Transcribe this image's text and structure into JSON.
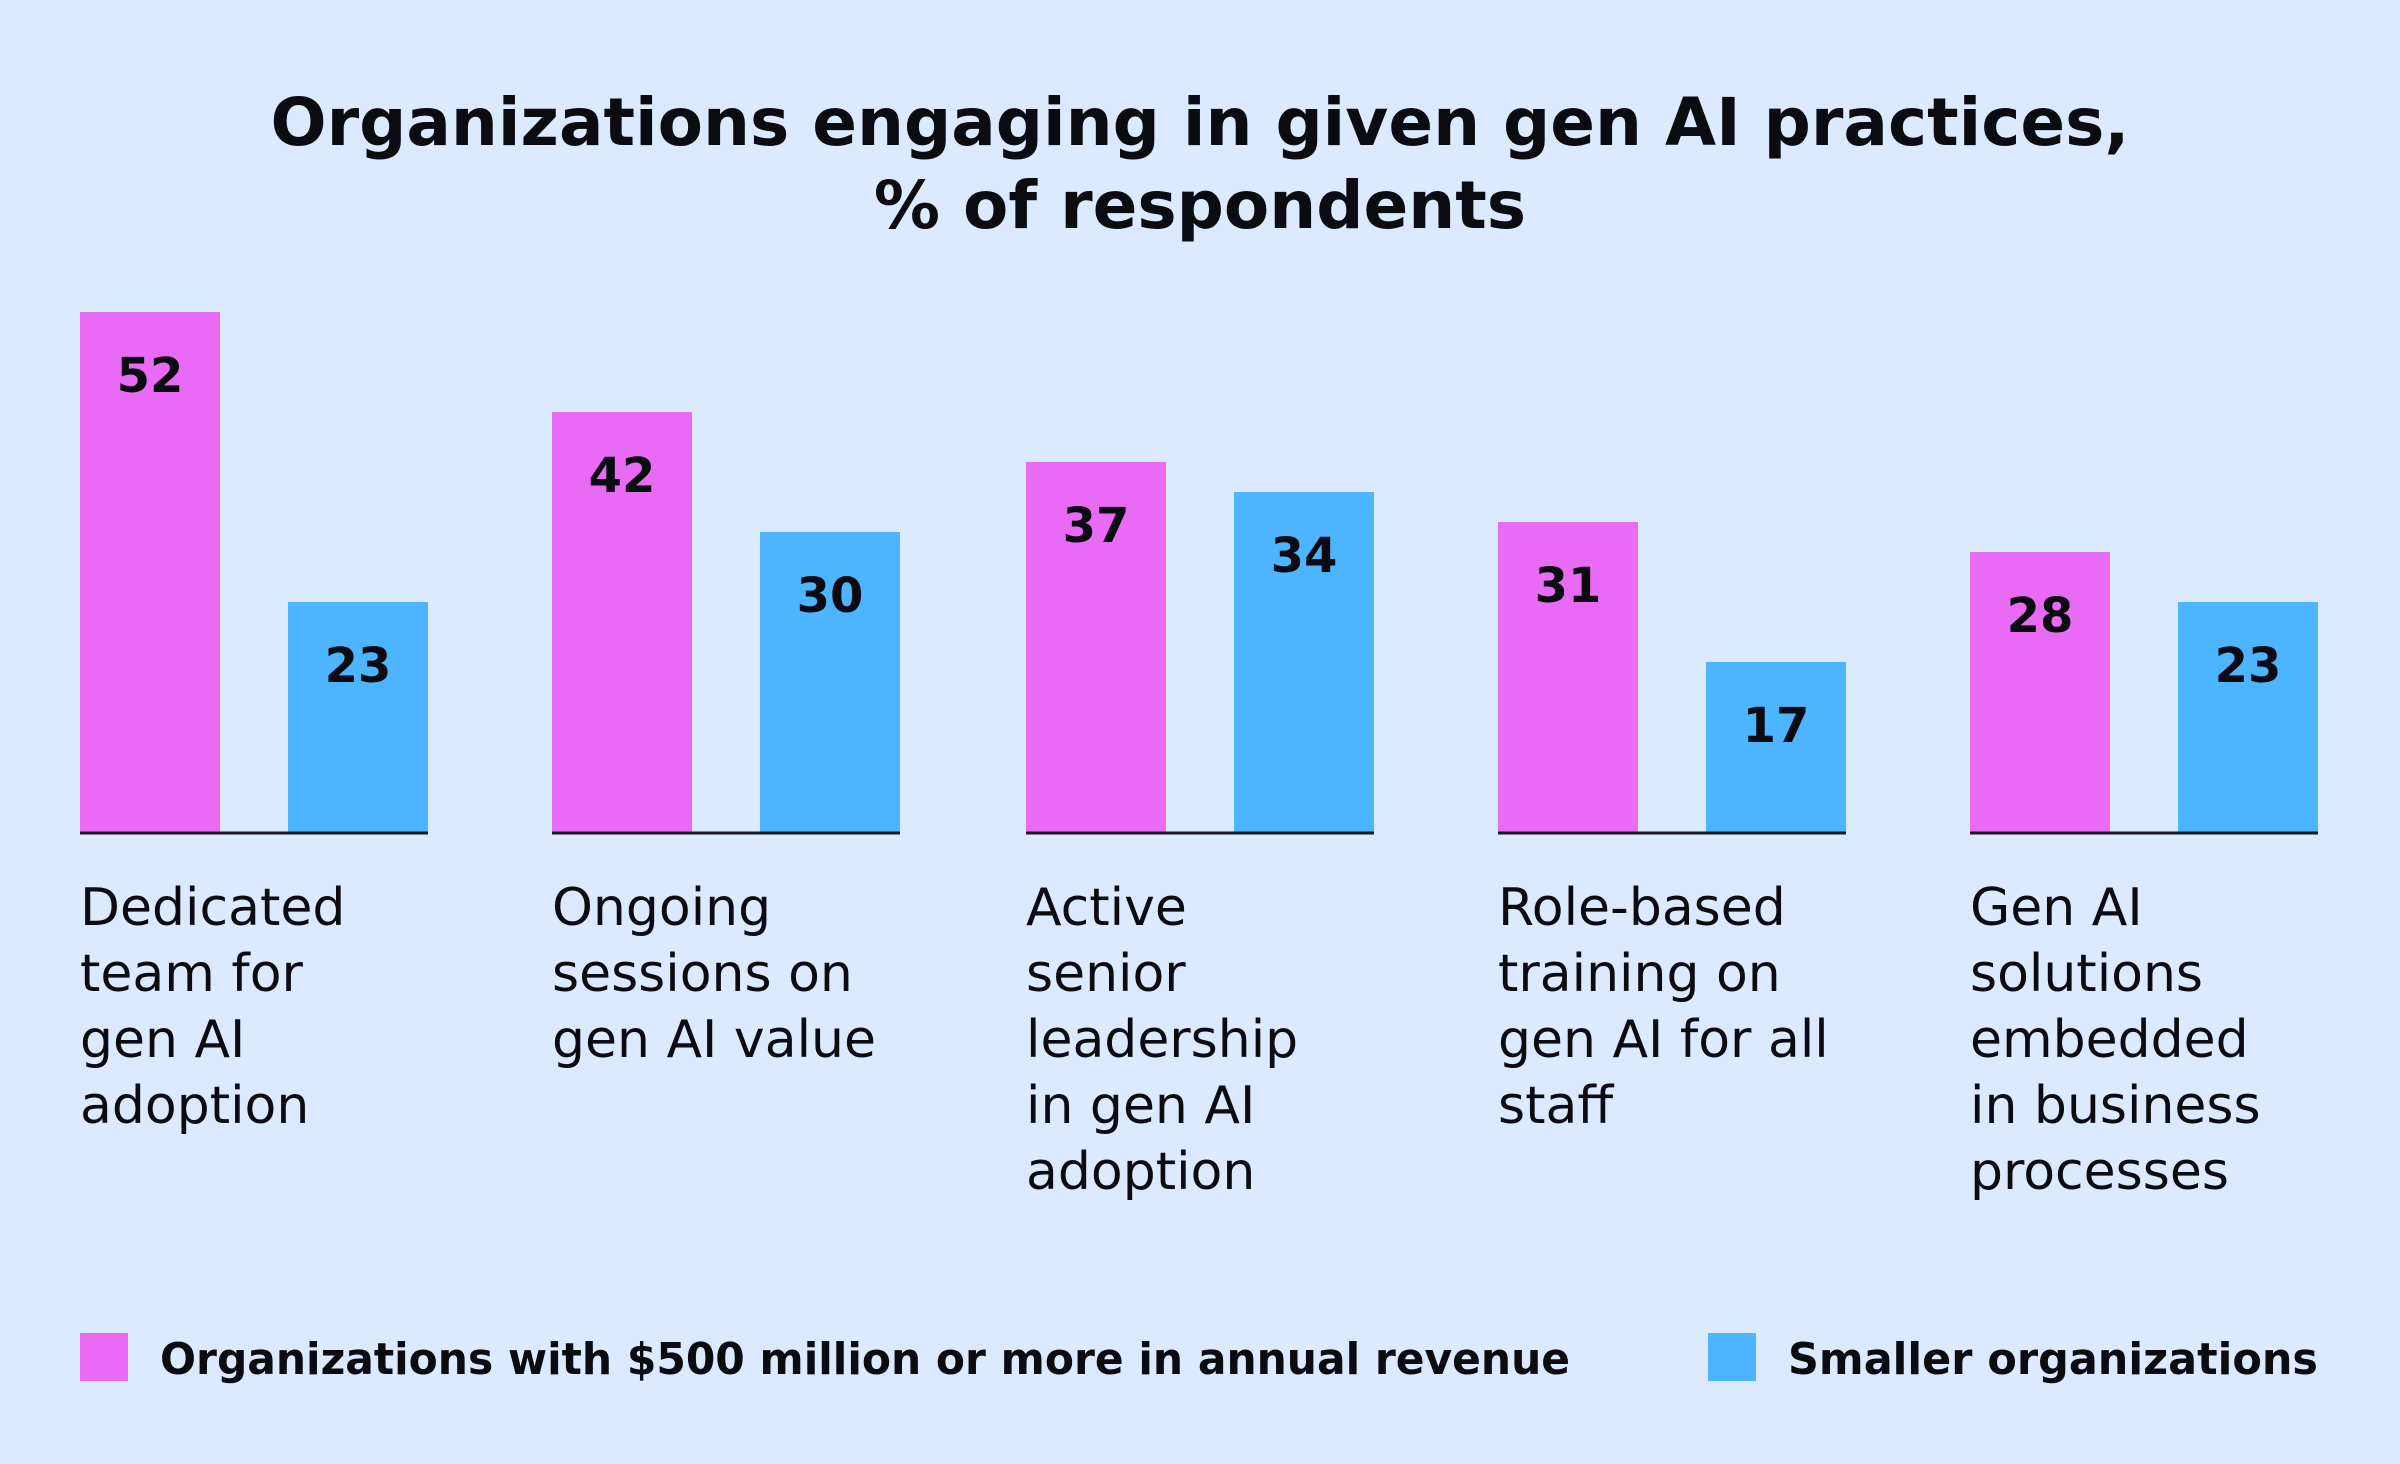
{
  "chart_data": {
    "type": "bar",
    "title_lines": [
      "Organizations engaging in given gen AI practices,",
      "% of respondents"
    ],
    "categories": [
      "Dedicated team for gen AI adoption",
      "Ongoing sessions on gen AI value",
      "Active senior leadership in gen AI adoption",
      "Role-based training on gen AI for all staff",
      "Gen AI solutions embedded in business processes"
    ],
    "category_lines": [
      [
        "Dedicated",
        "team for",
        "gen AI",
        "adoption"
      ],
      [
        "Ongoing",
        "sessions on",
        "gen AI value"
      ],
      [
        "Active",
        "senior",
        "leadership",
        "in gen AI",
        "adoption"
      ],
      [
        "Role-based",
        "training on",
        "gen AI for all",
        "staff"
      ],
      [
        "Gen AI",
        "solutions",
        "embedded",
        "in business",
        "processes"
      ]
    ],
    "series": [
      {
        "name": "Organizations with $500 million or more in annual revenue",
        "color": "#e96bf5",
        "values": [
          52,
          42,
          37,
          31,
          28
        ]
      },
      {
        "name": "Smaller organizations",
        "color": "#4db4ff",
        "values": [
          23,
          30,
          34,
          17,
          23
        ]
      }
    ],
    "ylim": [
      0,
      52
    ],
    "grid": false,
    "legend_position": "bottom",
    "xlabel": "",
    "ylabel": ""
  }
}
